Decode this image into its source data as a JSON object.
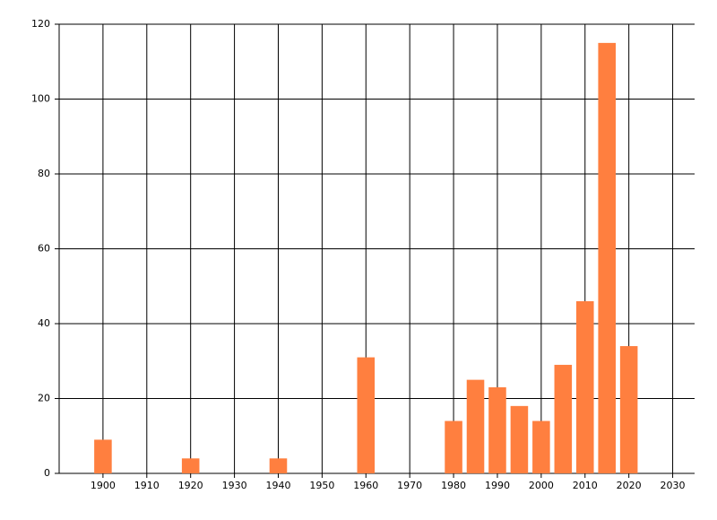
{
  "chart_data": {
    "type": "bar",
    "x": [
      1900,
      1920,
      1940,
      1960,
      1980,
      1985,
      1990,
      1995,
      2000,
      2005,
      2010,
      2015,
      2020
    ],
    "values": [
      9,
      4,
      4,
      31,
      14,
      25,
      23,
      18,
      14,
      29,
      46,
      115,
      34
    ],
    "color": "#ff7f3f",
    "xlim": [
      1890,
      2035
    ],
    "xticks": [
      1900,
      1910,
      1920,
      1930,
      1940,
      1950,
      1960,
      1970,
      1980,
      1990,
      2000,
      2010,
      2020,
      2030
    ],
    "ylim": [
      0,
      120
    ],
    "yticks": [
      0,
      20,
      40,
      60,
      80,
      100,
      120
    ],
    "grid": true
  }
}
